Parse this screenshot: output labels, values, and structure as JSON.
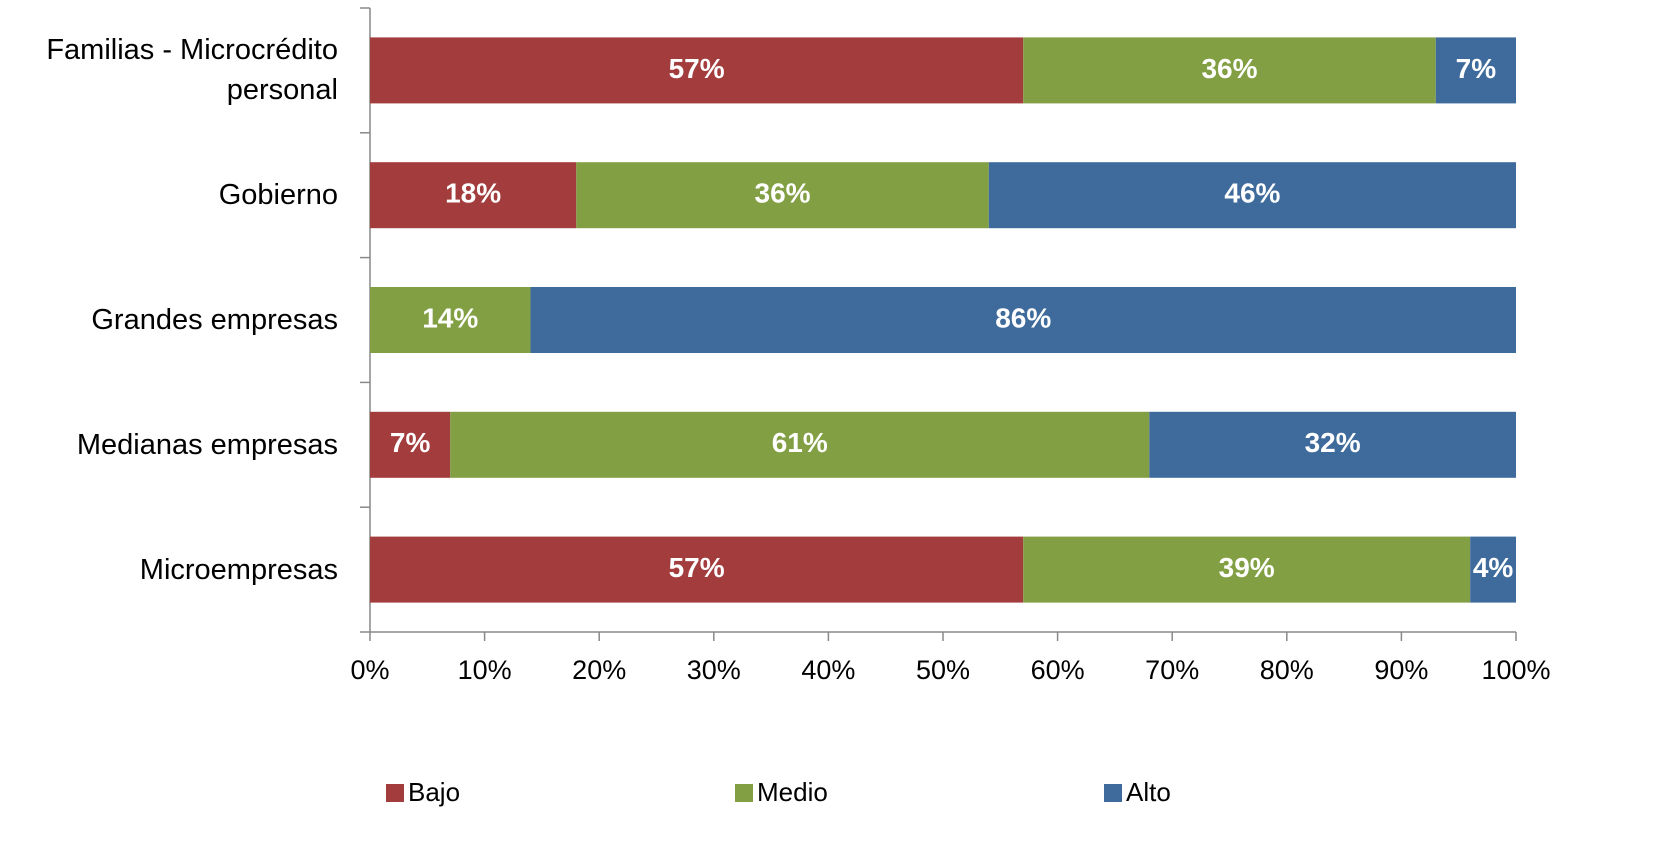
{
  "chart_data": {
    "type": "stacked_barh",
    "categories": [
      "Familias - Microcrédito personal",
      "Gobierno",
      "Grandes empresas",
      "Medianas empresas",
      "Microempresas"
    ],
    "series": [
      {
        "name": "Bajo",
        "color": "#a33c3c",
        "values": [
          57,
          18,
          null,
          7,
          57
        ],
        "value_labels": [
          "57%",
          "18%",
          null,
          "7%",
          "57%"
        ]
      },
      {
        "name": "Medio",
        "color": "#82a043",
        "values": [
          36,
          36,
          14,
          61,
          39
        ],
        "value_labels": [
          "36%",
          "36%",
          "14%",
          "61%",
          "39%"
        ]
      },
      {
        "name": "Alto",
        "color": "#3f6b9c",
        "values": [
          7,
          46,
          86,
          32,
          4
        ],
        "value_labels": [
          "7%",
          "46%",
          "86%",
          "32%",
          "4%"
        ]
      }
    ],
    "xlim": [
      0,
      100
    ],
    "xticks": [
      {
        "value": 0,
        "label": "0%"
      },
      {
        "value": 10,
        "label": "10%"
      },
      {
        "value": 20,
        "label": "20%"
      },
      {
        "value": 30,
        "label": "30%"
      },
      {
        "value": 40,
        "label": "40%"
      },
      {
        "value": 50,
        "label": "50%"
      },
      {
        "value": 60,
        "label": "60%"
      },
      {
        "value": 70,
        "label": "70%"
      },
      {
        "value": 80,
        "label": "80%"
      },
      {
        "value": 90,
        "label": "90%"
      },
      {
        "value": 100,
        "label": "100%"
      }
    ],
    "legend": "bottom"
  }
}
